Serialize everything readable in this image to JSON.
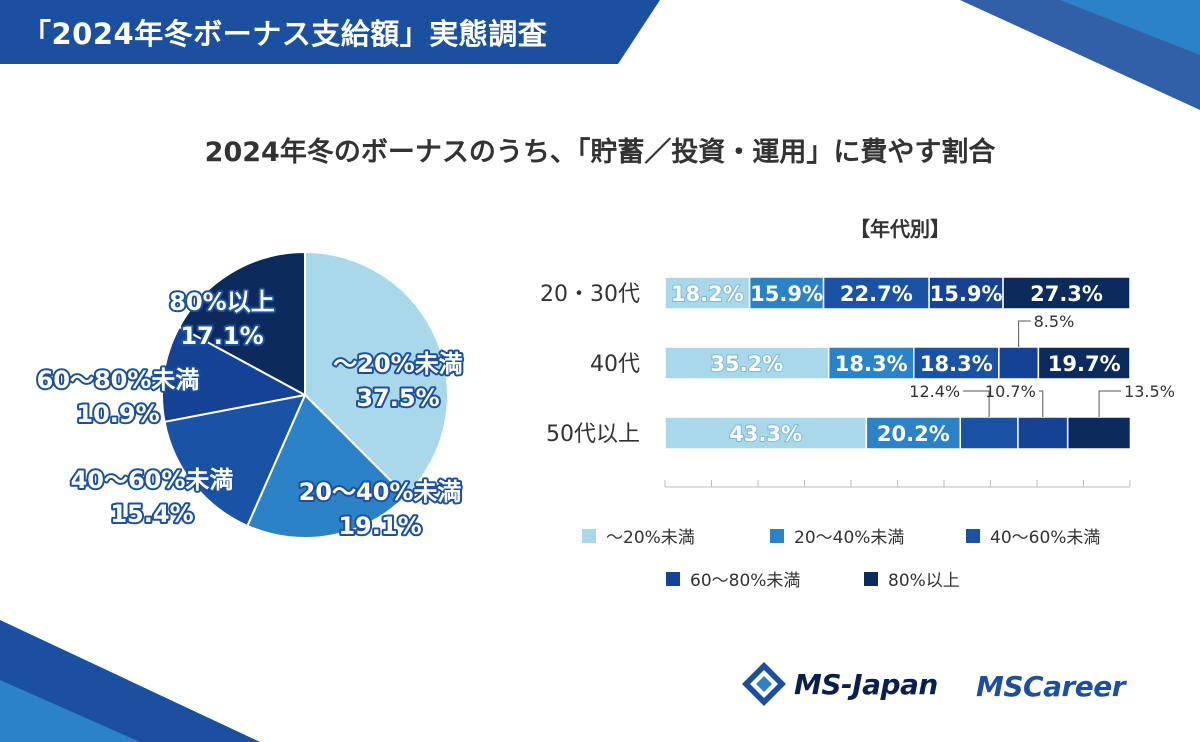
{
  "banner": {
    "title": "「2024年冬ボーナス支給額」実態調査"
  },
  "chart_title": "2024年冬のボーナスのうち、「貯蓄／投資・運用」に費やす割合",
  "colors": {
    "c1": "#a9d8ea",
    "c2": "#2c82c6",
    "c3": "#1a53a6",
    "c4": "#164296",
    "c5": "#0d2a5c",
    "banner": "#1b4fa0"
  },
  "chart_data": [
    {
      "type": "pie",
      "title": "",
      "slices": [
        {
          "label": "～20%未満",
          "value": 37.5,
          "display": "37.5%",
          "color": "#a9d8ea"
        },
        {
          "label": "20～40%未満",
          "value": 19.1,
          "display": "19.1%",
          "color": "#2c82c6"
        },
        {
          "label": "40～60%未満",
          "value": 15.4,
          "display": "15.4%",
          "color": "#1a53a6"
        },
        {
          "label": "60～80%未満",
          "value": 10.9,
          "display": "10.9%",
          "color": "#164296"
        },
        {
          "label": "80%以上",
          "value": 17.1,
          "display": "17.1%",
          "color": "#0d2a5c"
        }
      ]
    },
    {
      "type": "bar",
      "orientation": "horizontal",
      "stacked": true,
      "title": "【年代別】",
      "categories": [
        "20・30代",
        "40代",
        "50代以上"
      ],
      "series": [
        {
          "name": "～20%未満",
          "values": [
            18.2,
            35.2,
            43.3
          ],
          "color": "#a9d8ea"
        },
        {
          "name": "20～40%未満",
          "values": [
            15.9,
            18.3,
            20.2
          ],
          "color": "#2c82c6"
        },
        {
          "name": "40～60%未満",
          "values": [
            22.7,
            18.3,
            12.4
          ],
          "color": "#1a53a6"
        },
        {
          "name": "60～80%未満",
          "values": [
            15.9,
            8.5,
            10.7
          ],
          "color": "#164296"
        },
        {
          "name": "80%以上",
          "values": [
            27.3,
            19.7,
            13.5
          ],
          "color": "#0d2a5c"
        }
      ],
      "labels_outside": [
        {
          "category": "40代",
          "series": "60～80%未満",
          "text": "8.5%"
        },
        {
          "category": "50代以上",
          "series": "40～60%未満",
          "text": "12.4%"
        },
        {
          "category": "50代以上",
          "series": "60～80%未満",
          "text": "10.7%"
        },
        {
          "category": "50代以上",
          "series": "80%以上",
          "text": "13.5%"
        }
      ],
      "xlim": [
        0,
        100
      ],
      "legend": "bottom"
    }
  ],
  "legend": {
    "items": [
      {
        "label": "～20%未満",
        "color": "#a9d8ea"
      },
      {
        "label": "20～40%未満",
        "color": "#2c82c6"
      },
      {
        "label": "40～60%未満",
        "color": "#1a53a6"
      },
      {
        "label": "60～80%未満",
        "color": "#164296"
      },
      {
        "label": "80%以上",
        "color": "#0d2a5c"
      }
    ]
  },
  "logos": {
    "ms_japan": "MS-Japan",
    "ms_career": "MSCareer"
  }
}
